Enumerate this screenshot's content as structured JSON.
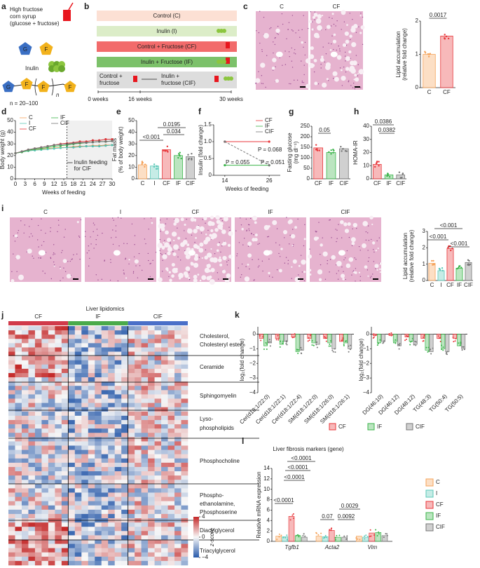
{
  "panels": {
    "a": {
      "label": "a",
      "lines": [
        "High fructose",
        "corn syrup",
        "(glucose + fructose)"
      ],
      "glucose": "G",
      "fructose": "F",
      "inulin": "Inulin",
      "n": "n",
      "n_range": "n = 20–100"
    },
    "b": {
      "label": "b",
      "groups": [
        "Control (C)",
        "Inulin (I)",
        "Control + Fructose (CF)",
        "Inulin + Fructose (IF)"
      ],
      "cif_before": [
        "Control +",
        "fructose"
      ],
      "cif_after": [
        "Inulin +",
        "fructose (CIF)"
      ],
      "timepoints": [
        "0 weeks",
        "16 weeks",
        "30 weeks"
      ]
    },
    "c": {
      "label": "c",
      "images": [
        "C",
        "CF"
      ],
      "chart": {
        "type": "bar",
        "ylabel": [
          "Lipid accumulation",
          "(relative fold change)"
        ],
        "categories": [
          "C",
          "CF"
        ],
        "values": [
          1.0,
          1.55
        ],
        "colors": [
          "#f5a35a",
          "#e8363a"
        ],
        "ylim": [
          0,
          2
        ],
        "yticks": [
          0,
          1,
          2
        ],
        "pvalues": [
          "0.0017"
        ]
      }
    },
    "d": {
      "label": "d",
      "type": "line",
      "ylabel": "Body weight (g)",
      "xlabel": "Weeks of feeding",
      "annotation": [
        "Inulin feeding",
        "for CIF"
      ],
      "start_week": 16,
      "x": [
        0,
        2,
        4,
        6,
        8,
        10,
        12,
        14,
        16,
        18,
        20,
        22,
        24,
        26,
        28,
        30
      ],
      "series": [
        {
          "name": "C",
          "color": "#f5a35a",
          "values": [
            22,
            23,
            24,
            25,
            25.5,
            26,
            26.5,
            27,
            27,
            27.5,
            28,
            28,
            28.5,
            28.5,
            29,
            29
          ]
        },
        {
          "name": "I",
          "color": "#5cc8b8",
          "values": [
            22,
            23,
            24,
            24.5,
            25,
            25.5,
            26,
            26.5,
            27,
            27,
            27.5,
            28,
            28,
            28,
            28.5,
            29
          ]
        },
        {
          "name": "CF",
          "color": "#e8363a",
          "values": [
            22,
            23.5,
            25,
            26,
            27,
            28,
            29,
            30,
            30.5,
            31,
            32,
            32,
            33,
            33,
            34,
            34
          ]
        },
        {
          "name": "IF",
          "color": "#3bb44a",
          "values": [
            22,
            23,
            24.5,
            25.5,
            26,
            27,
            28,
            28.5,
            29,
            30,
            30.5,
            31,
            31.5,
            32,
            32,
            32.5
          ]
        },
        {
          "name": "CIF",
          "color": "#777777",
          "values": [
            22,
            23.5,
            25,
            26,
            27,
            28,
            29,
            29.5,
            30,
            30.5,
            31,
            31,
            31.5,
            32,
            32,
            32.5
          ]
        }
      ],
      "xlim": [
        0,
        30
      ],
      "xticks": [
        0,
        3,
        6,
        9,
        12,
        15,
        18,
        21,
        24,
        27,
        30
      ],
      "ylim": [
        0,
        50
      ],
      "yticks": [
        0,
        10,
        20,
        30,
        40,
        50
      ]
    },
    "e": {
      "label": "e",
      "type": "bar",
      "ylabel": [
        "Fat mass",
        "(% of body weight)"
      ],
      "categories": [
        "C",
        "I",
        "CF",
        "IF",
        "CIF"
      ],
      "values": [
        12,
        11,
        25,
        20,
        19
      ],
      "colors": [
        "#f5a35a",
        "#5cc8b8",
        "#e8363a",
        "#3bb44a",
        "#777777"
      ],
      "ylim": [
        0,
        50
      ],
      "yticks": [
        0,
        10,
        20,
        30,
        40,
        50
      ],
      "pvalues": [
        "<0.001",
        "0.0195",
        "0.034"
      ]
    },
    "f": {
      "label": "f",
      "type": "line",
      "ylabel": "Insulin (fold change)",
      "xlabel": "Weeks of feeding",
      "annotations": [
        "P = 0.068",
        "P = 0.055",
        "P = 0.051"
      ],
      "x": [
        14,
        26
      ],
      "series": [
        {
          "name": "CF",
          "color": "#e8363a",
          "values": [
            1.0,
            1.0
          ]
        },
        {
          "name": "IF",
          "color": "#3bb44a",
          "values": [
            0.3,
            0.3
          ]
        },
        {
          "name": "CIF",
          "color": "#777777",
          "values": [
            1.0,
            0.3
          ]
        }
      ],
      "xlim": [
        11,
        29
      ],
      "xticks": [
        14,
        26
      ],
      "ylim": [
        0,
        1.5
      ],
      "yticks": [
        0,
        0.5,
        {
          "value": 1,
          "label": "1.0"
        },
        1.5
      ]
    },
    "g": {
      "label": "g",
      "type": "bar",
      "ylabel": [
        "Fasting glucose",
        "(mg dl⁻¹)"
      ],
      "categories": [
        "CF",
        "IF",
        "CIF"
      ],
      "values": [
        147,
        125,
        143
      ],
      "colors": [
        "#e8363a",
        "#3bb44a",
        "#777777"
      ],
      "ylim": [
        0,
        250
      ],
      "yticks": [
        0,
        50,
        100,
        150,
        200,
        250
      ],
      "pvalues": [
        "0.05"
      ]
    },
    "h": {
      "label": "h",
      "type": "bar",
      "ylabel": [
        "HOMA-IR"
      ],
      "categories": [
        "CF",
        "IF",
        "CIF"
      ],
      "values": [
        11,
        3,
        3
      ],
      "colors": [
        "#e8363a",
        "#3bb44a",
        "#777777"
      ],
      "ylim": [
        0,
        40
      ],
      "yticks": [
        0,
        10,
        20,
        30,
        40
      ],
      "pvalues": [
        "0.0386",
        "0.0382"
      ]
    },
    "i": {
      "label": "i",
      "images": [
        "C",
        "I",
        "CF",
        "IF",
        "CIF"
      ],
      "chart": {
        "type": "bar",
        "ylabel": [
          "Lipid accumulation",
          "(relative fold change)"
        ],
        "categories": [
          "C",
          "I",
          "CF",
          "IF",
          "CIF"
        ],
        "values": [
          1.05,
          0.6,
          1.95,
          0.75,
          1.1
        ],
        "colors": [
          "#f5a35a",
          "#5cc8b8",
          "#e8363a",
          "#3bb44a",
          "#777777"
        ],
        "ylim": [
          0,
          3
        ],
        "yticks": [
          0,
          1,
          2,
          3
        ],
        "pvalues": [
          "<0.001",
          "<0.001",
          "<0.001"
        ]
      }
    },
    "j": {
      "label": "j",
      "title": "Liver lipidomics",
      "groups": [
        "CF",
        "IF",
        "CIF"
      ],
      "classes": [
        [
          "Cholesterol,",
          "Cholesteryl ester"
        ],
        [
          "Ceramide"
        ],
        [
          "Sphingomyelin"
        ],
        [
          "Lyso-",
          "phospholipids"
        ],
        [
          "Phosphocholine"
        ],
        [
          "Phospho-",
          "ethanolamine,",
          "Phosphoserine"
        ],
        [
          "Diacylglycerol"
        ],
        [
          "Triacylglycerol"
        ]
      ],
      "colorbar_label": "z-score",
      "colorbar_ticks": [
        4,
        0,
        {
          "value": -4,
          "label": "−4"
        }
      ]
    },
    "k": {
      "label": "k",
      "ylabel": "log₂(fold change)",
      "ylim": [
        -4,
        0.5
      ],
      "yticks": [
        {
          "value": -4,
          "label": "−4"
        },
        {
          "value": -3,
          "label": "−3"
        },
        {
          "value": -2,
          "label": "−2"
        },
        {
          "value": -1,
          "label": "−1"
        },
        0
      ],
      "left": {
        "categories": [
          "Cer(d18:1/22:0)",
          "Cer(d18:1/22:1)",
          "Cer(d18:1/22:4)",
          "SM(d18:1/22:0)",
          "SM(d18:1/26:0)",
          "SM(d18:1/26:1)"
        ],
        "series": [
          {
            "name": "CF",
            "color": "#e8363a",
            "values": [
              -0.3,
              -0.3,
              -0.2,
              -0.3,
              -0.3,
              -0.5
            ]
          },
          {
            "name": "IF",
            "color": "#3bb44a",
            "values": [
              -0.8,
              -0.7,
              -1.2,
              -0.6,
              -0.6,
              -0.6
            ]
          },
          {
            "name": "CIF",
            "color": "#777777",
            "values": [
              -0.6,
              -0.5,
              -1.1,
              -0.7,
              -1.0,
              -1.0
            ]
          }
        ]
      },
      "right": {
        "categories": [
          "DG(46:10)",
          "DG(46:12)",
          "DG(48:12)",
          "TG(48:3)",
          "TG(50:4)",
          "TG(50:5)"
        ],
        "series": [
          {
            "name": "CF",
            "color": "#e8363a",
            "values": [
              -0.1,
              -0.1,
              -0.2,
              -0.3,
              -0.3,
              -0.3
            ]
          },
          {
            "name": "IF",
            "color": "#3bb44a",
            "values": [
              -0.6,
              -0.5,
              -0.5,
              -1.1,
              -1.0,
              -0.8
            ]
          },
          {
            "name": "CIF",
            "color": "#777777",
            "values": [
              -0.5,
              -0.8,
              -0.7,
              -1.2,
              -1.2,
              -1.0
            ]
          }
        ]
      }
    },
    "l": {
      "label": "l",
      "type": "bar",
      "title": "Liver fibrosis markers (gene)",
      "ylabel": "Relative mRNA expression",
      "categories": [
        "Tgfb1",
        "Acta2",
        "Vim"
      ],
      "series": [
        {
          "name": "C",
          "color": "#f5a35a",
          "values": [
            1.0,
            1.0,
            1.0
          ]
        },
        {
          "name": "I",
          "color": "#5cc8b8",
          "values": [
            0.9,
            0.9,
            0.8
          ]
        },
        {
          "name": "CF",
          "color": "#e8363a",
          "values": [
            4.8,
            2.1,
            1.6
          ]
        },
        {
          "name": "IF",
          "color": "#3bb44a",
          "values": [
            1.1,
            0.8,
            1.7
          ]
        },
        {
          "name": "CIF",
          "color": "#777777",
          "values": [
            0.8,
            0.8,
            1.1
          ]
        }
      ],
      "ylim": [
        0,
        14
      ],
      "yticks": [
        0,
        2,
        4,
        6,
        8,
        10,
        12,
        14
      ],
      "pvalues": [
        "<0.0001",
        "<0.0001",
        "<0.0001",
        "<0.0001",
        "0.07",
        "0.0092",
        "0.0029"
      ]
    }
  }
}
